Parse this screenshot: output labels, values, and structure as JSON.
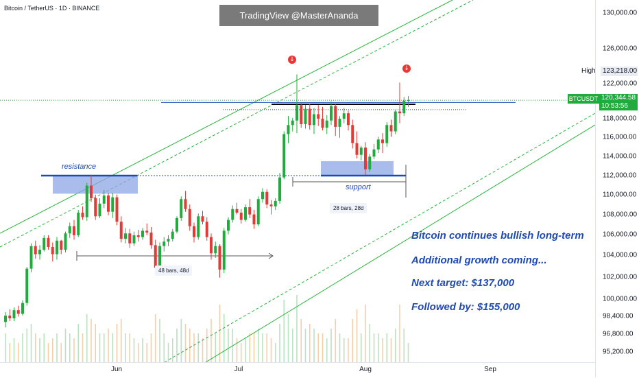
{
  "header": {
    "symbol_title": "Bitcoin / TetherUS · 1D · BINANCE",
    "watermark": "TradingView @MasterAnanda"
  },
  "price_axis": {
    "ticks": [
      "130,000.00",
      "126,000.00",
      "122,000.00",
      "118,000.00",
      "116,000.00",
      "114,000.00",
      "112,000.00",
      "110,000.00",
      "108,000.00",
      "106,000.00",
      "104,000.00",
      "102,000.00",
      "100,000.00",
      "98,400.00",
      "96,800.00",
      "95,200.00"
    ],
    "high_label": "High",
    "high_value": "123,218.00",
    "symbol_badge": "BTCUSDT",
    "last_price": "120,344.58",
    "countdown": "10:53:56"
  },
  "time_axis": {
    "ticks": [
      "Jun",
      "Jul",
      "Aug",
      "Sep"
    ]
  },
  "annotations": {
    "resistance": "resistance",
    "support": "support",
    "range_1": "48 bars, 48d",
    "range_2": "28 bars, 28d"
  },
  "headlines": [
    "Bitcoin continues bullish long-term",
    "Additional growth coming...",
    "Next target: $137,000",
    "Followed by: $155,000"
  ],
  "colors": {
    "up": "#22ab3d",
    "down": "#e53935",
    "channel": "#26b33a",
    "blue_line": "#1e49b4",
    "zone": "#8ea6e6",
    "volume_up": "#b9e3c0",
    "volume_down": "#f5cfa8",
    "accent_text": "#1e49b4"
  },
  "chart_data": {
    "type": "candlestick",
    "title": "Bitcoin / TetherUS · 1D · BINANCE",
    "ylim": [
      94500,
      132000
    ],
    "x_ticks": [
      "Jun",
      "Jul",
      "Aug",
      "Sep"
    ],
    "candles": [
      [
        95800,
        96900,
        95200,
        96500
      ],
      [
        96500,
        97200,
        95900,
        96200
      ],
      [
        96200,
        97400,
        95900,
        97100
      ],
      [
        97100,
        97600,
        96400,
        96700
      ],
      [
        96700,
        98200,
        96500,
        97900
      ],
      [
        97900,
        101900,
        97600,
        101700
      ],
      [
        101700,
        104500,
        101300,
        104200
      ],
      [
        104200,
        104800,
        102800,
        103300
      ],
      [
        103300,
        104300,
        102700,
        103800
      ],
      [
        103800,
        105400,
        103600,
        105100
      ],
      [
        105100,
        105400,
        103800,
        104100
      ],
      [
        104100,
        104600,
        102500,
        103300
      ],
      [
        103300,
        105200,
        102700,
        104800
      ],
      [
        104800,
        104900,
        103300,
        103800
      ],
      [
        103800,
        105800,
        103500,
        105600
      ],
      [
        105600,
        106800,
        105100,
        106400
      ],
      [
        106400,
        107100,
        104900,
        105400
      ],
      [
        105400,
        108200,
        105200,
        107900
      ],
      [
        107900,
        108600,
        107100,
        107400
      ],
      [
        107400,
        111200,
        107000,
        110900
      ],
      [
        110900,
        112100,
        109100,
        109500
      ],
      [
        109500,
        109900,
        107100,
        107500
      ],
      [
        107500,
        109500,
        107300,
        108900
      ],
      [
        108900,
        110400,
        108400,
        109800
      ],
      [
        109800,
        110100,
        107600,
        108000
      ],
      [
        108000,
        110100,
        107300,
        109600
      ],
      [
        109600,
        109900,
        106500,
        106900
      ],
      [
        106900,
        107500,
        104600,
        105000
      ],
      [
        105000,
        106200,
        104500,
        105600
      ],
      [
        105600,
        106100,
        104000,
        104500
      ],
      [
        104500,
        105800,
        104200,
        105400
      ],
      [
        105400,
        106000,
        104700,
        105200
      ],
      [
        105200,
        106200,
        104900,
        105900
      ],
      [
        105900,
        106700,
        105400,
        105700
      ],
      [
        105700,
        106300,
        103900,
        104300
      ],
      [
        104300,
        104900,
        101500,
        101800
      ],
      [
        101800,
        104600,
        101300,
        104200
      ],
      [
        104200,
        105200,
        103600,
        104700
      ],
      [
        104700,
        105400,
        104200,
        105000
      ],
      [
        105000,
        106100,
        104700,
        105800
      ],
      [
        105800,
        107500,
        105600,
        107300
      ],
      [
        107300,
        109700,
        107000,
        109400
      ],
      [
        109400,
        110300,
        108000,
        108300
      ],
      [
        108300,
        108800,
        105900,
        106400
      ],
      [
        106400,
        106800,
        104600,
        105200
      ],
      [
        105200,
        107800,
        104900,
        107500
      ],
      [
        107500,
        108100,
        106600,
        106900
      ],
      [
        106900,
        107400,
        104800,
        105200
      ],
      [
        105200,
        105600,
        102700,
        103400
      ],
      [
        103400,
        104700,
        102900,
        104200
      ],
      [
        104200,
        104400,
        100700,
        101600
      ],
      [
        101600,
        106200,
        101200,
        105900
      ],
      [
        105900,
        107400,
        105500,
        107100
      ],
      [
        107100,
        108700,
        106800,
        108300
      ],
      [
        108300,
        109000,
        107700,
        107900
      ],
      [
        107900,
        108300,
        106700,
        107100
      ],
      [
        107100,
        108800,
        106900,
        108500
      ],
      [
        108500,
        109400,
        107300,
        107700
      ],
      [
        107700,
        108200,
        106100,
        106600
      ],
      [
        106600,
        109700,
        106400,
        109400
      ],
      [
        109400,
        110600,
        109000,
        110200
      ],
      [
        110200,
        110500,
        108400,
        108800
      ],
      [
        108800,
        109300,
        107700,
        108600
      ],
      [
        108600,
        109500,
        108200,
        109200
      ],
      [
        109200,
        112300,
        108900,
        111800
      ],
      [
        111800,
        116900,
        111600,
        116600
      ],
      [
        116600,
        118600,
        115600,
        117600
      ],
      [
        117600,
        118400,
        116900,
        118100
      ],
      [
        118100,
        123200,
        116700,
        119800
      ],
      [
        119800,
        120100,
        117300,
        117700
      ],
      [
        117700,
        119800,
        117200,
        119400
      ],
      [
        119400,
        120000,
        117100,
        117600
      ],
      [
        117600,
        119500,
        116600,
        118800
      ],
      [
        118800,
        119800,
        117500,
        118300
      ],
      [
        118300,
        119600,
        117000,
        117300
      ],
      [
        117300,
        118700,
        116600,
        118100
      ],
      [
        118100,
        120200,
        117600,
        119700
      ],
      [
        119700,
        119900,
        116400,
        117400
      ],
      [
        117400,
        118600,
        116200,
        118300
      ],
      [
        118300,
        119500,
        117800,
        118900
      ],
      [
        118900,
        119200,
        117000,
        117600
      ],
      [
        117600,
        118200,
        115000,
        115600
      ],
      [
        115600,
        116900,
        113900,
        114300
      ],
      [
        114300,
        115300,
        113700,
        115100
      ],
      [
        115100,
        115700,
        112100,
        112700
      ],
      [
        112700,
        114400,
        112400,
        114100
      ],
      [
        114100,
        115500,
        113800,
        114900
      ],
      [
        114900,
        116300,
        114500,
        116000
      ],
      [
        116000,
        116700,
        114500,
        115600
      ],
      [
        115600,
        117900,
        115200,
        117600
      ],
      [
        117600,
        118200,
        116300,
        116900
      ],
      [
        116900,
        119300,
        116600,
        119100
      ],
      [
        119100,
        122300,
        117800,
        118900
      ],
      [
        118900,
        120700,
        118600,
        120300
      ],
      [
        120300,
        120800,
        119600,
        120345
      ]
    ],
    "volume_relative": [
      0.3,
      0.2,
      0.25,
      0.2,
      0.3,
      0.35,
      0.4,
      0.3,
      0.25,
      0.3,
      0.2,
      0.25,
      0.3,
      0.2,
      0.35,
      0.3,
      0.25,
      0.4,
      0.3,
      0.5,
      0.45,
      0.4,
      0.3,
      0.3,
      0.35,
      0.3,
      0.4,
      0.45,
      0.3,
      0.3,
      0.25,
      0.2,
      0.25,
      0.2,
      0.3,
      0.5,
      0.45,
      0.3,
      0.2,
      0.25,
      0.35,
      0.45,
      0.4,
      0.35,
      0.3,
      0.3,
      0.25,
      0.35,
      0.45,
      0.3,
      0.6,
      0.5,
      0.35,
      0.35,
      0.25,
      0.2,
      0.25,
      0.3,
      0.3,
      0.35,
      0.3,
      0.3,
      0.25,
      0.2,
      0.4,
      0.65,
      0.5,
      0.35,
      0.7,
      0.45,
      0.35,
      0.4,
      0.35,
      0.3,
      0.3,
      0.25,
      0.35,
      0.45,
      0.3,
      0.25,
      0.25,
      0.45,
      0.55,
      0.3,
      0.6,
      0.4,
      0.3,
      0.3,
      0.25,
      0.3,
      0.25,
      0.35,
      0.6,
      0.35,
      0.2
    ],
    "levels": {
      "resistance": 112000,
      "support_zone": [
        112000,
        113500
      ],
      "resistance_zone": [
        110000,
        112000
      ],
      "top_line": 119900,
      "current_price": 120344.58,
      "high": 123218
    }
  }
}
